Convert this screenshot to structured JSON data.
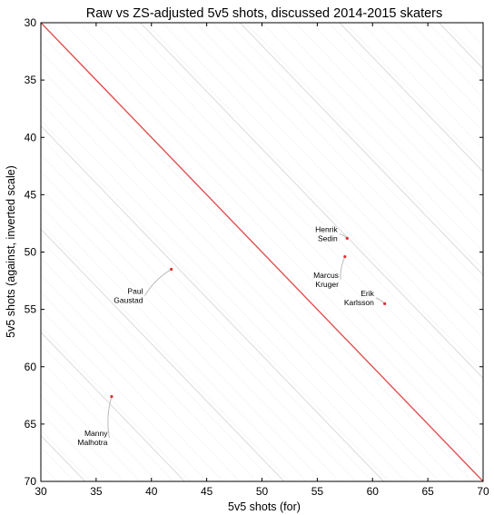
{
  "chart_data": {
    "type": "scatter",
    "title": "Raw vs ZS-adjusted 5v5 shots, discussed 2014-2015 skaters",
    "xlabel": "5v5 shots (for)",
    "ylabel": "5v5 shots (against, inverted scale)",
    "xlim": [
      30,
      70
    ],
    "ylim": [
      70,
      30
    ],
    "y_inverted": true,
    "xticks": [
      30,
      35,
      40,
      45,
      50,
      55,
      60,
      65,
      70
    ],
    "yticks": [
      30,
      35,
      40,
      45,
      50,
      55,
      60,
      65,
      70
    ],
    "grid": false,
    "legend": "none",
    "background_contours": "diagonal iso-lines (x - y constant)",
    "diagonal_reference": {
      "from": [
        30,
        30
      ],
      "to": [
        70,
        70
      ],
      "color": "#e05050"
    },
    "point_color": "#e03030",
    "connector_color": "#bbbbbb",
    "players": [
      {
        "label_lines": [
          "Henrik",
          "Sedin"
        ],
        "raw": [
          57.0,
          48.4
        ],
        "adjusted": [
          57.7,
          48.8
        ]
      },
      {
        "label_lines": [
          "Marcus",
          "Kruger"
        ],
        "raw": [
          57.1,
          52.4
        ],
        "adjusted": [
          57.5,
          50.4
        ]
      },
      {
        "label_lines": [
          "Erik",
          "Karlsson"
        ],
        "raw": [
          60.3,
          54.0
        ],
        "adjusted": [
          61.1,
          54.5
        ]
      },
      {
        "label_lines": [
          "Paul",
          "Gaustad"
        ],
        "raw": [
          39.4,
          53.8
        ],
        "adjusted": [
          41.8,
          51.5
        ]
      },
      {
        "label_lines": [
          "Manny",
          "Malhotra"
        ],
        "raw": [
          36.2,
          66.2
        ],
        "adjusted": [
          36.4,
          62.6
        ]
      }
    ]
  }
}
